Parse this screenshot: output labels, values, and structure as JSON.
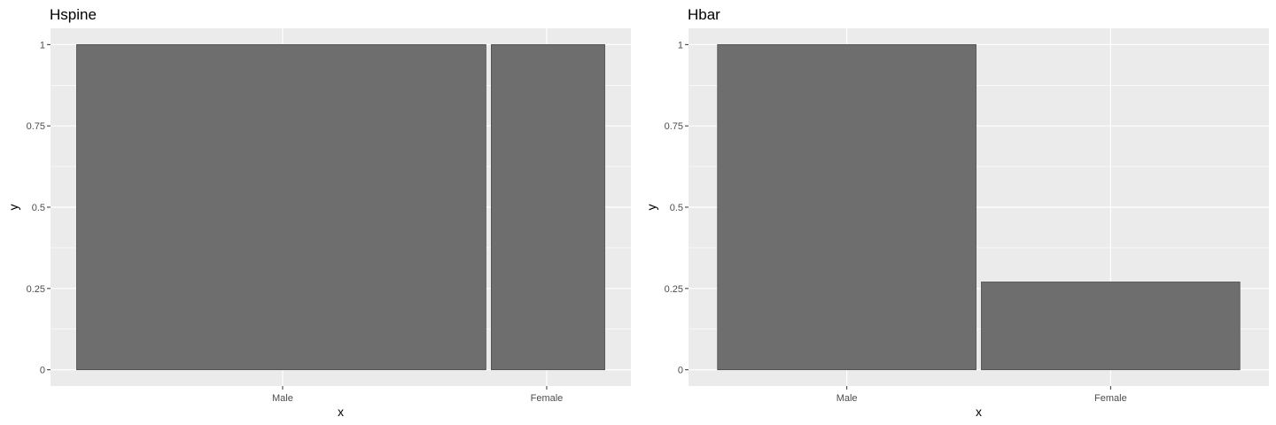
{
  "chart_data": [
    {
      "type": "spine",
      "title": "Hspine",
      "xlabel": "x",
      "ylabel": "y",
      "categories": [
        "Male",
        "Female"
      ],
      "widths": [
        0.78,
        0.22
      ],
      "values": [
        1,
        1
      ],
      "ylim": [
        0,
        1
      ],
      "yticks": [
        0,
        0.25,
        0.5,
        0.75,
        1
      ],
      "ytick_labels": [
        "0",
        "0.25",
        "0.5",
        "0.75",
        "1"
      ],
      "grid": true,
      "colors": {
        "panel": "#ebebeb",
        "grid": "#ffffff",
        "bar": "#6e6e6e",
        "bar_border": "#4d4d4d"
      }
    },
    {
      "type": "bar",
      "title": "Hbar",
      "xlabel": "x",
      "ylabel": "y",
      "categories": [
        "Male",
        "Female"
      ],
      "values": [
        1,
        0.27
      ],
      "ylim": [
        0,
        1
      ],
      "yticks": [
        0,
        0.25,
        0.5,
        0.75,
        1
      ],
      "ytick_labels": [
        "0",
        "0.25",
        "0.5",
        "0.75",
        "1"
      ],
      "grid": true,
      "colors": {
        "panel": "#ebebeb",
        "grid": "#ffffff",
        "bar": "#6e6e6e",
        "bar_border": "#4d4d4d"
      }
    }
  ]
}
